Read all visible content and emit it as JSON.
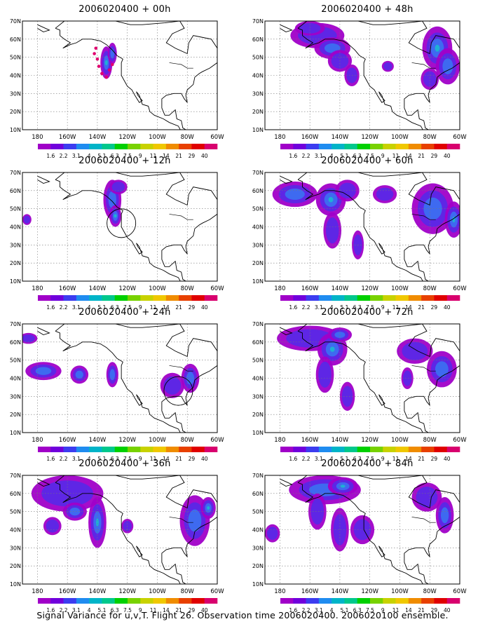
{
  "caption": "Signal Variance for u,v,T. Flight 26. Observation time 2006020400. 2006020100 ensemble.",
  "colorbar": {
    "labels": [
      "1.6",
      "2.2",
      "3.1",
      "4",
      "5.1",
      "6.3",
      "7.5",
      "9",
      "11",
      "14",
      "21",
      "29",
      "40"
    ],
    "colors": [
      "#a000c8",
      "#7000dc",
      "#3c3cf0",
      "#1f8cf0",
      "#00b4c8",
      "#00c88c",
      "#00d000",
      "#78d200",
      "#c8d200",
      "#f0c800",
      "#f08c00",
      "#e84000",
      "#e00000",
      "#d8006e"
    ]
  },
  "axes": {
    "lat_ticks": [
      "10N",
      "20N",
      "30N",
      "40N",
      "50N",
      "60N",
      "70N"
    ],
    "lon_ticks": [
      "180",
      "160W",
      "140W",
      "120W",
      "100W",
      "80W",
      "60W"
    ],
    "lat_range": [
      10,
      70
    ],
    "lon_range": [
      170,
      300
    ]
  },
  "chart_data": [
    {
      "type": "heatmap",
      "title": "2006020400 + 00h",
      "blobs": [
        [
          -134,
          47,
          4,
          9,
          3
        ],
        [
          -130,
          52,
          3,
          6,
          2
        ]
      ],
      "dots": [
        [
          -142,
          52
        ],
        [
          -141,
          55
        ],
        [
          -140,
          49
        ],
        [
          -139,
          45
        ],
        [
          -137,
          41
        ],
        [
          -134,
          39
        ],
        [
          -132,
          43
        ],
        [
          -130,
          46
        ]
      ],
      "circles": []
    },
    {
      "type": "heatmap",
      "title": "2006020400 + 48h",
      "blobs": [
        [
          -155,
          62,
          18,
          7,
          1
        ],
        [
          -145,
          55,
          12,
          6,
          2
        ],
        [
          -140,
          48,
          8,
          6,
          1
        ],
        [
          -132,
          40,
          5,
          6,
          1
        ],
        [
          -160,
          66,
          10,
          4,
          1
        ],
        [
          -75,
          55,
          10,
          12,
          3
        ],
        [
          -68,
          45,
          8,
          10,
          2
        ],
        [
          -80,
          38,
          6,
          6,
          1
        ],
        [
          -108,
          45,
          4,
          3,
          1
        ]
      ],
      "dots": [],
      "circles": []
    },
    {
      "type": "heatmap",
      "title": "2006020400 + 12h",
      "blobs": [
        [
          -130,
          55,
          6,
          11,
          2
        ],
        [
          -128,
          46,
          4,
          6,
          3
        ],
        [
          -126,
          62,
          6,
          4,
          1
        ],
        [
          -187,
          44,
          3,
          3,
          1
        ]
      ],
      "dots": [],
      "circles": [
        [
          -124,
          42,
          8
        ]
      ]
    },
    {
      "type": "heatmap",
      "title": "2006020400 + 60h",
      "blobs": [
        [
          -170,
          58,
          15,
          7,
          2
        ],
        [
          -146,
          55,
          10,
          9,
          3
        ],
        [
          -135,
          60,
          8,
          6,
          1
        ],
        [
          -145,
          38,
          6,
          10,
          1
        ],
        [
          -128,
          30,
          4,
          8,
          1
        ],
        [
          -110,
          58,
          8,
          5,
          1
        ],
        [
          -78,
          50,
          14,
          14,
          2
        ],
        [
          -64,
          44,
          6,
          10,
          3
        ]
      ],
      "dots": [],
      "circles": []
    },
    {
      "type": "heatmap",
      "title": "2006020400 + 24h",
      "blobs": [
        [
          -176,
          44,
          12,
          5,
          2
        ],
        [
          -152,
          42,
          6,
          5,
          2
        ],
        [
          -130,
          42,
          4,
          7,
          2
        ],
        [
          -186,
          62,
          6,
          3,
          1
        ],
        [
          -90,
          36,
          8,
          7,
          1
        ],
        [
          -78,
          40,
          6,
          8,
          2
        ]
      ],
      "dots": [],
      "circles": [
        [
          -86,
          33,
          8
        ]
      ]
    },
    {
      "type": "heatmap",
      "title": "2006020400 + 72h",
      "blobs": [
        [
          -160,
          62,
          22,
          7,
          1
        ],
        [
          -145,
          56,
          10,
          9,
          3
        ],
        [
          -140,
          64,
          8,
          4,
          2
        ],
        [
          -150,
          42,
          6,
          10,
          1
        ],
        [
          -135,
          30,
          5,
          8,
          1
        ],
        [
          -90,
          55,
          12,
          7,
          1
        ],
        [
          -72,
          45,
          10,
          10,
          2
        ],
        [
          -95,
          40,
          4,
          6,
          1
        ]
      ],
      "dots": [],
      "circles": []
    },
    {
      "type": "heatmap",
      "title": "2006020400 + 36h",
      "blobs": [
        [
          -160,
          60,
          24,
          10,
          1
        ],
        [
          -155,
          50,
          8,
          5,
          2
        ],
        [
          -140,
          44,
          6,
          14,
          3
        ],
        [
          -170,
          42,
          6,
          5,
          1
        ],
        [
          -120,
          42,
          4,
          4,
          1
        ],
        [
          -75,
          45,
          10,
          14,
          2
        ],
        [
          -66,
          52,
          5,
          6,
          3
        ]
      ],
      "dots": [],
      "circles": []
    },
    {
      "type": "heatmap",
      "title": "2006020400 + 84h",
      "blobs": [
        [
          -150,
          62,
          24,
          8,
          2
        ],
        [
          -138,
          64,
          10,
          5,
          3
        ],
        [
          -155,
          50,
          6,
          10,
          1
        ],
        [
          -140,
          40,
          6,
          12,
          1
        ],
        [
          -125,
          40,
          8,
          8,
          1
        ],
        [
          -82,
          58,
          10,
          8,
          1
        ],
        [
          -70,
          48,
          6,
          10,
          2
        ],
        [
          -185,
          38,
          5,
          5,
          1
        ]
      ],
      "dots": [],
      "circles": []
    }
  ]
}
